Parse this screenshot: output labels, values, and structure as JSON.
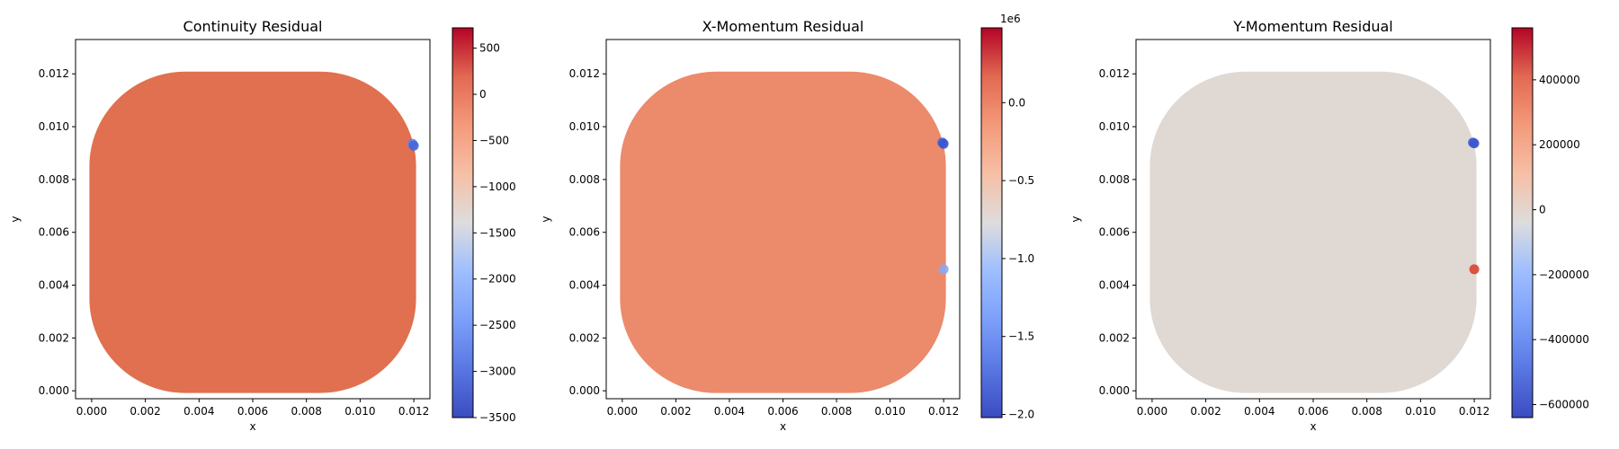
{
  "chart_data": [
    {
      "type": "scatter",
      "title": "Continuity Residual",
      "xlabel": "x",
      "ylabel": "y",
      "xlim": [
        -0.0006,
        0.0126
      ],
      "ylim": [
        -0.0003,
        0.0133
      ],
      "x_ticks": [
        "0.000",
        "0.002",
        "0.004",
        "0.006",
        "0.008",
        "0.010",
        "0.012"
      ],
      "y_ticks": [
        "0.000",
        "0.002",
        "0.004",
        "0.006",
        "0.008",
        "0.010",
        "0.012"
      ],
      "domain_shape": "square with quarter-circle cut-outs at all four corners, side 0.012",
      "field_color": "#e0704f",
      "colormap": "coolwarm",
      "colorbar": {
        "range": [
          -3500,
          720
        ],
        "ticks": [
          "500",
          "0",
          "−500",
          "−1000",
          "−1500",
          "−2000",
          "−2500",
          "−3000",
          "−3500"
        ],
        "tick_values": [
          500,
          0,
          -500,
          -1000,
          -1500,
          -2000,
          -2500,
          -3000,
          -3500
        ]
      },
      "outliers": [
        {
          "x": 0.01195,
          "y": 0.00935,
          "color": "#6080e8"
        },
        {
          "x": 0.012,
          "y": 0.00928,
          "color": "#4565d8"
        }
      ]
    },
    {
      "type": "scatter",
      "title": "X-Momentum Residual",
      "xlabel": "x",
      "ylabel": "y",
      "xlim": [
        -0.0006,
        0.0126
      ],
      "ylim": [
        -0.0003,
        0.0133
      ],
      "x_ticks": [
        "0.000",
        "0.002",
        "0.004",
        "0.006",
        "0.008",
        "0.010",
        "0.012"
      ],
      "y_ticks": [
        "0.000",
        "0.002",
        "0.004",
        "0.006",
        "0.008",
        "0.010",
        "0.012"
      ],
      "domain_shape": "square with quarter-circle cut-outs at all four corners, side 0.012",
      "field_color": "#ec8a6c",
      "colormap": "coolwarm",
      "colorbar": {
        "range": [
          -2.02,
          0.48
        ],
        "ticks": [
          "0.0",
          "−0.5",
          "−1.0",
          "−1.5",
          "−2.0"
        ],
        "tick_values": [
          0,
          -0.5,
          -1.0,
          -1.5,
          -2.0
        ],
        "offset_label": "1e6"
      },
      "outliers": [
        {
          "x": 0.01195,
          "y": 0.0094,
          "color": "#4565d8"
        },
        {
          "x": 0.012,
          "y": 0.00935,
          "color": "#3b55cc"
        },
        {
          "x": 0.012,
          "y": 0.0046,
          "color": "#8aa8f0"
        }
      ]
    },
    {
      "type": "scatter",
      "title": "Y-Momentum Residual",
      "xlabel": "x",
      "ylabel": "y",
      "xlim": [
        -0.0006,
        0.0126
      ],
      "ylim": [
        -0.0003,
        0.0133
      ],
      "x_ticks": [
        "0.000",
        "0.002",
        "0.004",
        "0.006",
        "0.008",
        "0.010",
        "0.012"
      ],
      "y_ticks": [
        "0.000",
        "0.002",
        "0.004",
        "0.006",
        "0.008",
        "0.010",
        "0.012"
      ],
      "domain_shape": "square with quarter-circle cut-outs at all four corners, side 0.012",
      "field_color": "#e0d8d2",
      "colormap": "coolwarm",
      "colorbar": {
        "range": [
          -640000,
          560000
        ],
        "ticks": [
          "400000",
          "200000",
          "0",
          "−200000",
          "−400000",
          "−600000"
        ],
        "tick_values": [
          400000,
          200000,
          0,
          -200000,
          -400000,
          -600000
        ]
      },
      "outliers": [
        {
          "x": 0.01195,
          "y": 0.0094,
          "color": "#4565d8"
        },
        {
          "x": 0.012,
          "y": 0.00937,
          "color": "#3b55cc"
        },
        {
          "x": 0.012,
          "y": 0.0046,
          "color": "#d9452f"
        }
      ]
    }
  ]
}
